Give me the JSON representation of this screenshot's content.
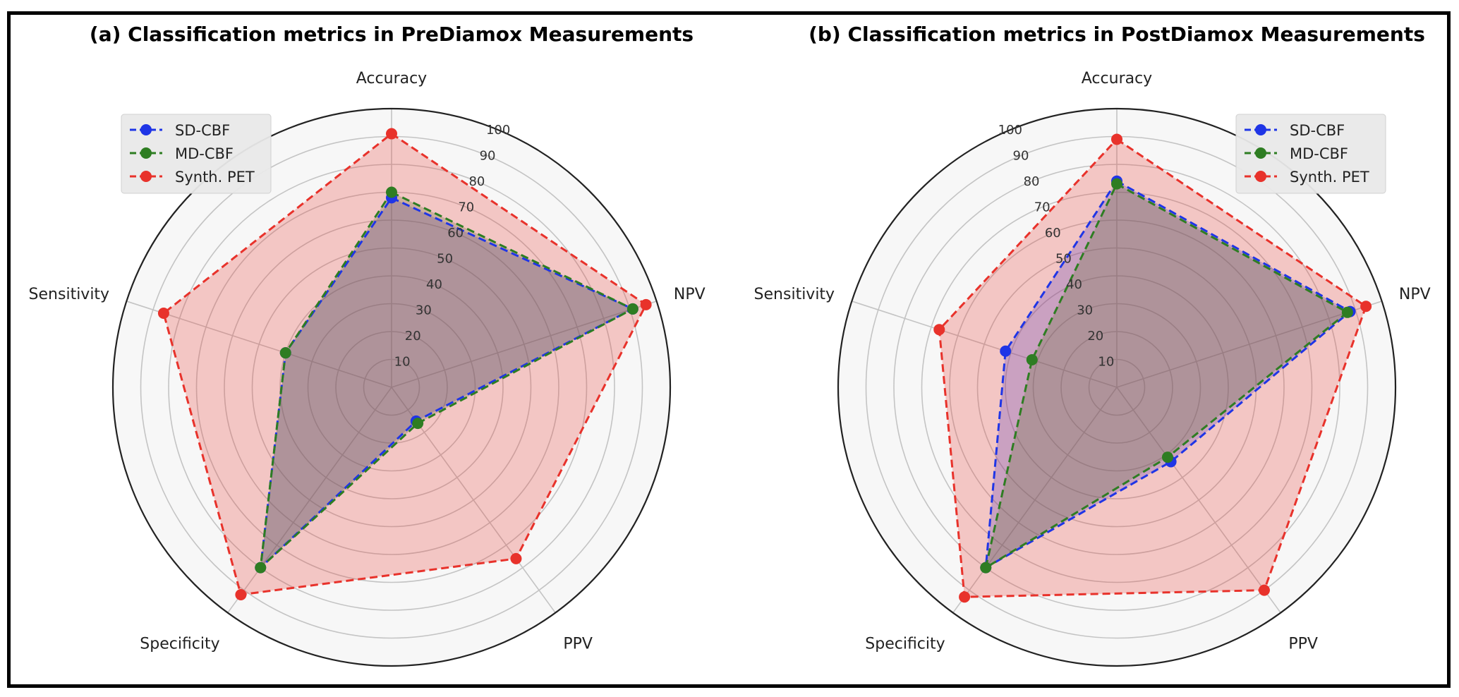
{
  "chart_data": [
    {
      "type": "radar",
      "title": "(a) Classification metrics in PreDiamox Measurements",
      "axes": [
        "Accuracy",
        "NPV",
        "PPV",
        "Specificity",
        "Sensitivity"
      ],
      "rlim": [
        0,
        100
      ],
      "rticks": [
        10,
        20,
        30,
        40,
        50,
        60,
        70,
        80,
        90,
        100
      ],
      "grid": true,
      "legend_position": "top-left",
      "series": [
        {
          "name": "SD-CBF",
          "values": [
            68,
            91,
            15,
            80,
            40
          ],
          "color": "#1f35e6"
        },
        {
          "name": "MD-CBF",
          "values": [
            70,
            91,
            16,
            80,
            40
          ],
          "color": "#2e7d22"
        },
        {
          "name": "Synth. PET",
          "values": [
            91,
            96,
            76,
            92,
            86
          ],
          "color": "#e8322b"
        }
      ]
    },
    {
      "type": "radar",
      "title": "(b) Classification metrics in PostDiamox Measurements",
      "axes": [
        "Accuracy",
        "NPV",
        "PPV",
        "Specificity",
        "Sensitivity"
      ],
      "rlim": [
        0,
        100
      ],
      "rticks": [
        10,
        20,
        30,
        40,
        50,
        60,
        70,
        80,
        90,
        100
      ],
      "grid": true,
      "legend_position": "top-right",
      "series": [
        {
          "name": "SD-CBF",
          "values": [
            74,
            88,
            33,
            80,
            42
          ],
          "color": "#1f35e6"
        },
        {
          "name": "MD-CBF",
          "values": [
            73,
            87,
            31,
            80,
            32
          ],
          "color": "#2e7d22"
        },
        {
          "name": "Synth. PET",
          "values": [
            89,
            94,
            90,
            93,
            67
          ],
          "color": "#e8322b"
        }
      ]
    }
  ]
}
